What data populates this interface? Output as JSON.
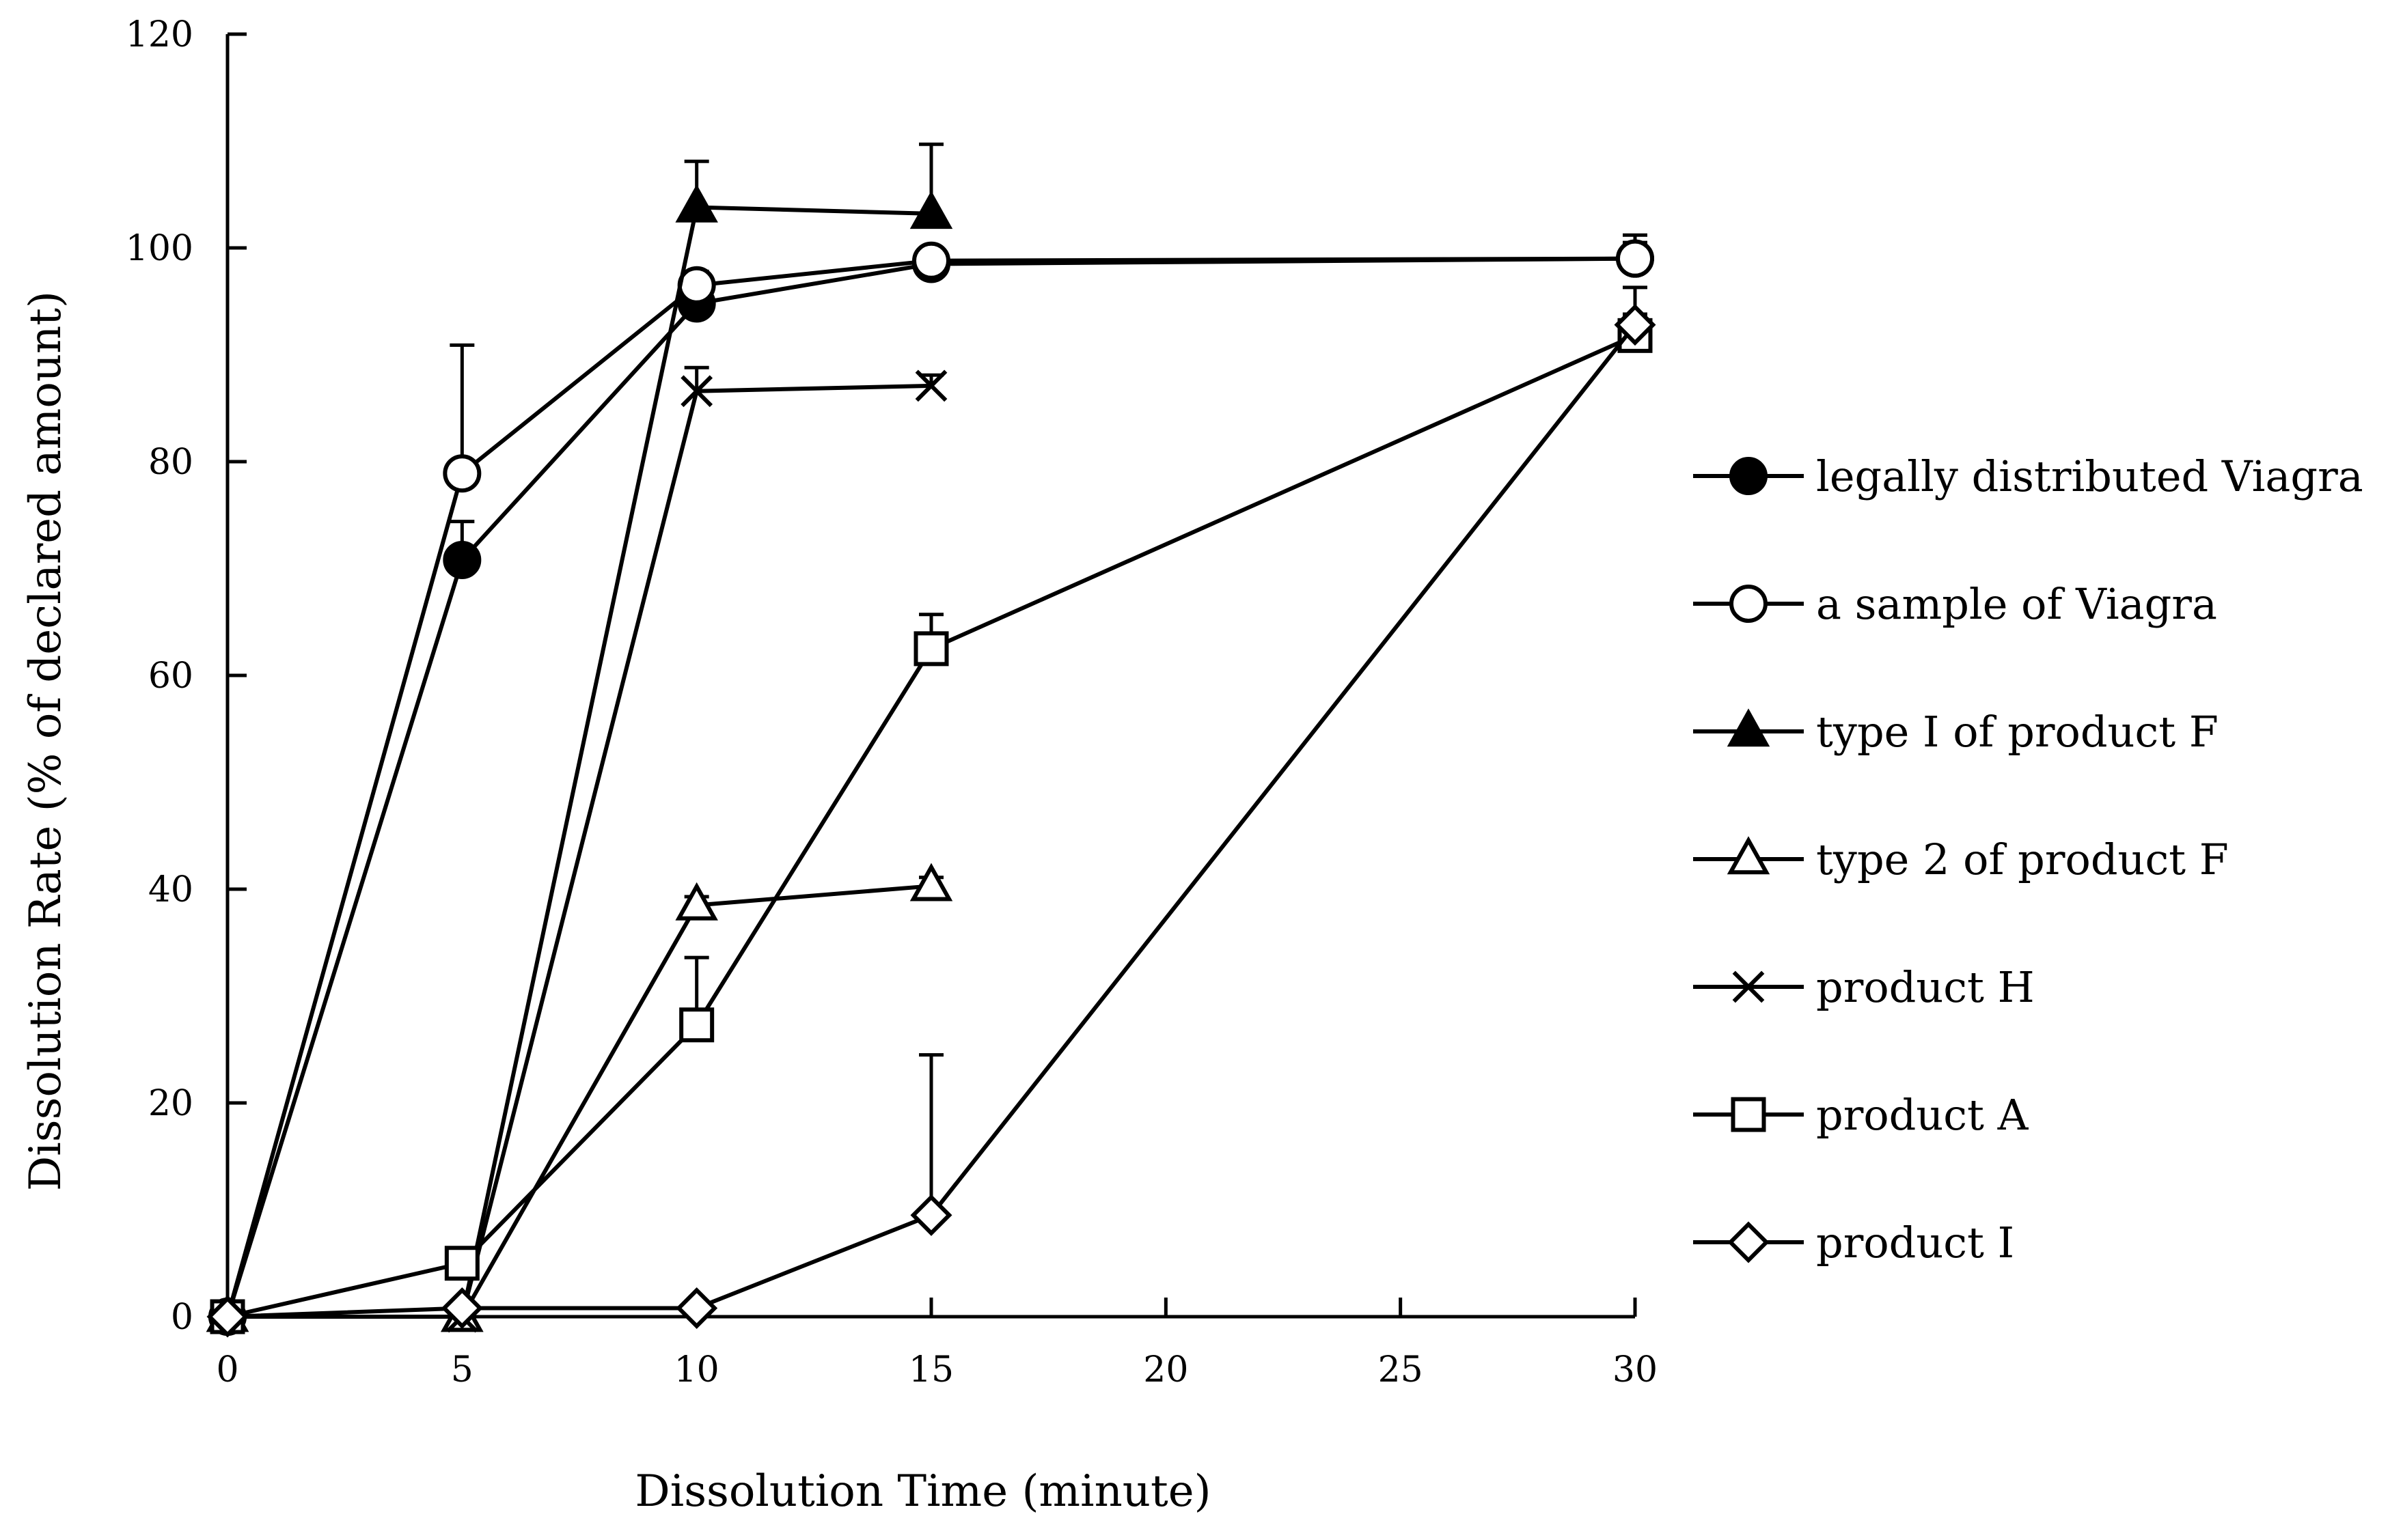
{
  "chart_data": {
    "type": "line",
    "title": "",
    "xlabel": "Dissolution Time (minute)",
    "ylabel": "Dissolution Rate (% of declared amount)",
    "xlim": [
      0,
      30
    ],
    "ylim": [
      0,
      120
    ],
    "xticks": [
      0,
      5,
      10,
      15,
      20,
      25,
      30
    ],
    "yticks": [
      0,
      20,
      40,
      60,
      80,
      100,
      120
    ],
    "grid": false,
    "legend_position": "right",
    "series": [
      {
        "name": "legally distributed Viagra",
        "marker": "circle-filled",
        "x": [
          0,
          5,
          10,
          15,
          30
        ],
        "y": [
          0,
          70.8,
          94.8,
          98.5,
          99.0
        ],
        "err": [
          0,
          3.6,
          1.0,
          1.2,
          2.2
        ]
      },
      {
        "name": "a sample of Viagra",
        "marker": "circle-open",
        "x": [
          0,
          5,
          10,
          15,
          30
        ],
        "y": [
          0,
          78.9,
          96.5,
          98.8,
          99.0
        ],
        "err": [
          0,
          12.0,
          1.3,
          1.0,
          1.5
        ]
      },
      {
        "name": "type I of product F",
        "marker": "triangle-filled",
        "x": [
          0,
          5,
          10,
          15
        ],
        "y": [
          0,
          0,
          103.8,
          103.2
        ],
        "err": [
          0,
          0,
          4.3,
          6.5
        ]
      },
      {
        "name": "type 2 of product F",
        "marker": "triangle-open",
        "x": [
          0,
          5,
          10,
          15
        ],
        "y": [
          0,
          0,
          38.5,
          40.3
        ],
        "err": [
          0,
          0,
          0.8,
          0.8
        ]
      },
      {
        "name": "product H",
        "marker": "cross",
        "x": [
          0,
          5,
          10,
          15
        ],
        "y": [
          0,
          0,
          86.6,
          87.1
        ],
        "err": [
          0,
          0,
          2.2,
          1.0
        ]
      },
      {
        "name": "product A",
        "marker": "square-open",
        "x": [
          0,
          5,
          10,
          15,
          30
        ],
        "y": [
          0,
          5.0,
          27.3,
          62.5,
          91.8
        ],
        "err": [
          0,
          0.5,
          6.3,
          3.2,
          4.5
        ]
      },
      {
        "name": "product I",
        "marker": "diamond-open",
        "x": [
          0,
          5,
          10,
          15,
          30
        ],
        "y": [
          0,
          0.8,
          0.8,
          9.5,
          92.8
        ],
        "err": [
          0,
          0,
          0,
          15.0,
          1.0
        ]
      }
    ]
  }
}
